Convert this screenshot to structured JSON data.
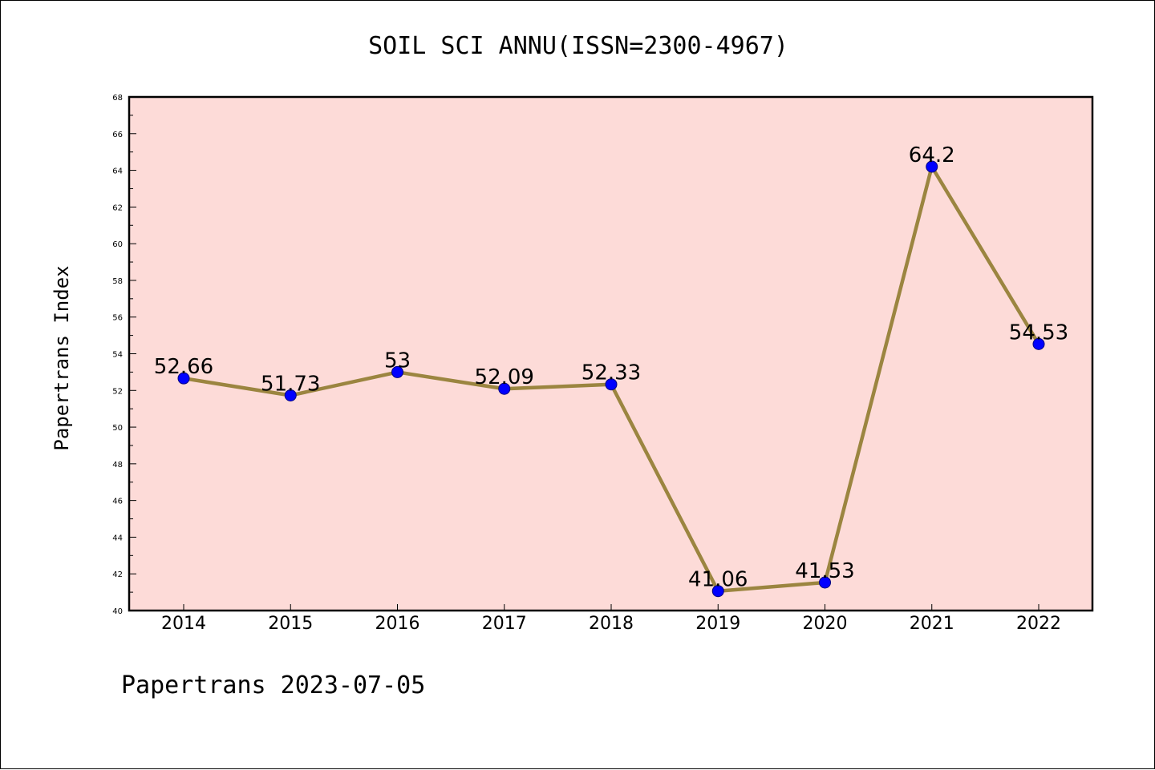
{
  "footer": "Papertrans 2023-07-05",
  "colors": {
    "plot_background": "#fddbd8",
    "line": "#9b8540",
    "marker": "#0000ff",
    "marker_edge": "#000080"
  },
  "chart_data": {
    "type": "line",
    "title": "SOIL SCI ANNU(ISSN=2300-4967)",
    "xlabel": "",
    "ylabel": "Papertrans Index",
    "categories": [
      "2014",
      "2015",
      "2016",
      "2017",
      "2018",
      "2019",
      "2020",
      "2021",
      "2022"
    ],
    "series": [
      {
        "values": [
          52.66,
          51.73,
          53,
          52.09,
          52.33,
          41.06,
          41.53,
          64.2,
          54.53
        ],
        "labels": [
          "52.66",
          "51.73",
          "53",
          "52.09",
          "52.33",
          "41.06",
          "41.53",
          "64.2",
          "54.53"
        ]
      }
    ],
    "ylim": [
      40,
      68
    ],
    "yticks": [
      40,
      42,
      44,
      46,
      48,
      50,
      52,
      54,
      56,
      58,
      60,
      62,
      64,
      66,
      68
    ],
    "grid": false,
    "legend": "none"
  }
}
